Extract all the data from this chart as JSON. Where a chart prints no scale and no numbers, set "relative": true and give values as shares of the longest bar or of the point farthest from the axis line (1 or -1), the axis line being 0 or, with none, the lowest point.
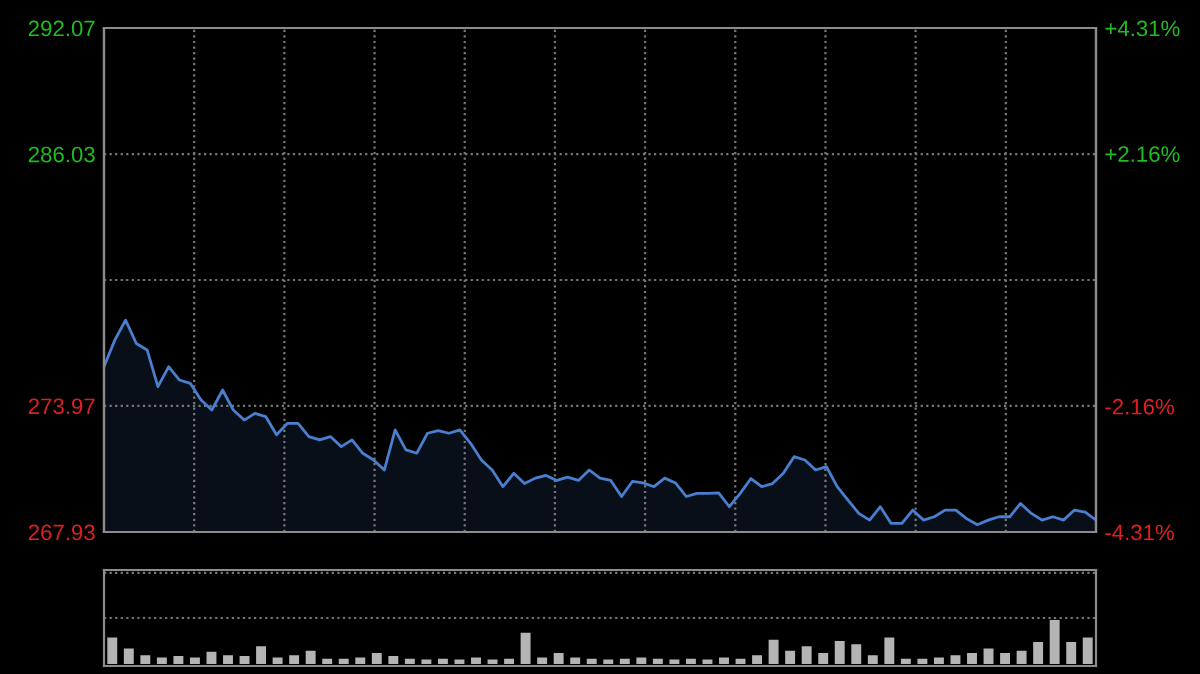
{
  "chart_data": [
    {
      "type": "area",
      "grid": true,
      "tick_labels": "y",
      "categories": [
        null,
        null,
        null,
        null,
        null,
        null,
        null,
        null,
        null,
        null,
        null,
        null,
        null,
        null,
        null,
        null,
        null,
        null,
        null,
        null,
        null,
        null,
        null,
        null,
        null,
        null,
        null,
        null,
        null,
        null,
        null,
        null,
        null,
        null,
        null,
        null,
        null,
        null,
        null,
        null,
        null,
        null,
        null,
        null,
        null,
        null,
        null,
        null,
        null,
        null,
        null,
        null,
        null,
        null,
        null,
        null,
        null,
        null,
        null,
        null,
        null,
        null,
        null,
        null,
        null,
        null,
        null,
        null,
        null,
        null,
        null,
        null,
        null,
        null,
        null,
        null,
        null,
        null,
        null,
        null,
        null,
        null,
        null,
        null,
        null,
        null,
        null,
        null,
        null,
        null,
        null,
        null,
        null
      ],
      "ylim": [
        267.93,
        292.07
      ],
      "yticks": [
        267.93,
        273.97,
        {
          "value": 280,
          "label": null
        },
        286.03,
        292.07
      ],
      "y2lim": [
        -4.31,
        4.31
      ],
      "y2ticks": [
        {
          "value": 4.31,
          "label": "+4.31%"
        },
        {
          "value": 2.16,
          "label": "+2.16%"
        },
        {
          "value": -2.16,
          "label": "-2.16%"
        },
        {
          "value": -4.31,
          "label": "-4.31%"
        }
      ],
      "series": [
        {
          "color": "#4a7fd0",
          "values": [
            275.85,
            277.12,
            278.08,
            276.96,
            276.65,
            274.89,
            275.85,
            275.21,
            275.05,
            274.25,
            273.77,
            274.73,
            273.77,
            273.29,
            273.61,
            273.46,
            272.59,
            273.13,
            273.13,
            272.5,
            272.34,
            272.5,
            272.02,
            272.34,
            271.7,
            271.38,
            270.9,
            272.82,
            271.86,
            271.7,
            272.66,
            272.79,
            272.66,
            272.82,
            272.18,
            271.38,
            270.9,
            270.1,
            270.74,
            270.25,
            270.51,
            270.64,
            270.4,
            270.56,
            270.4,
            270.9,
            270.51,
            270.4,
            269.63,
            270.35,
            270.28,
            270.1,
            270.51,
            270.28,
            269.63,
            269.78,
            269.78,
            269.8,
            269.14,
            269.78,
            270.49,
            270.1,
            270.25,
            270.74,
            271.54,
            271.38,
            270.9,
            271.06,
            270.1,
            269.46,
            268.82,
            268.5,
            269.14,
            268.34,
            268.34,
            268.98,
            268.5,
            268.66,
            268.98,
            268.98,
            268.57,
            268.28,
            268.5,
            268.66,
            268.66,
            269.3,
            268.82,
            268.5,
            268.66,
            268.5,
            268.98,
            268.88,
            268.5
          ]
        }
      ]
    },
    {
      "type": "bar",
      "relative": true,
      "grid": true,
      "tick_labels": false,
      "categories": [
        null,
        null,
        null,
        null,
        null,
        null,
        null,
        null,
        null,
        null,
        null,
        null,
        null,
        null,
        null,
        null,
        null,
        null,
        null,
        null,
        null,
        null,
        null,
        null,
        null,
        null,
        null,
        null,
        null,
        null,
        null,
        null,
        null,
        null,
        null,
        null,
        null,
        null,
        null,
        null,
        null,
        null,
        null,
        null,
        null,
        null,
        null,
        null,
        null,
        null,
        null,
        null,
        null,
        null,
        null,
        null,
        null,
        null,
        null,
        null
      ],
      "series": [
        {
          "color": "#b4b4b4",
          "values": [
            0.6,
            0.35,
            0.2,
            0.15,
            0.18,
            0.15,
            0.28,
            0.2,
            0.18,
            0.4,
            0.15,
            0.2,
            0.3,
            0.12,
            0.12,
            0.15,
            0.25,
            0.18,
            0.12,
            0.1,
            0.12,
            0.1,
            0.15,
            0.1,
            0.12,
            0.71,
            0.15,
            0.25,
            0.15,
            0.12,
            0.1,
            0.12,
            0.15,
            0.12,
            0.1,
            0.12,
            0.1,
            0.15,
            0.12,
            0.2,
            0.55,
            0.3,
            0.4,
            0.25,
            0.52,
            0.45,
            0.2,
            0.6,
            0.12,
            0.12,
            0.15,
            0.2,
            0.25,
            0.35,
            0.25,
            0.3,
            0.5,
            1.0,
            0.5,
            0.6
          ]
        }
      ]
    }
  ]
}
